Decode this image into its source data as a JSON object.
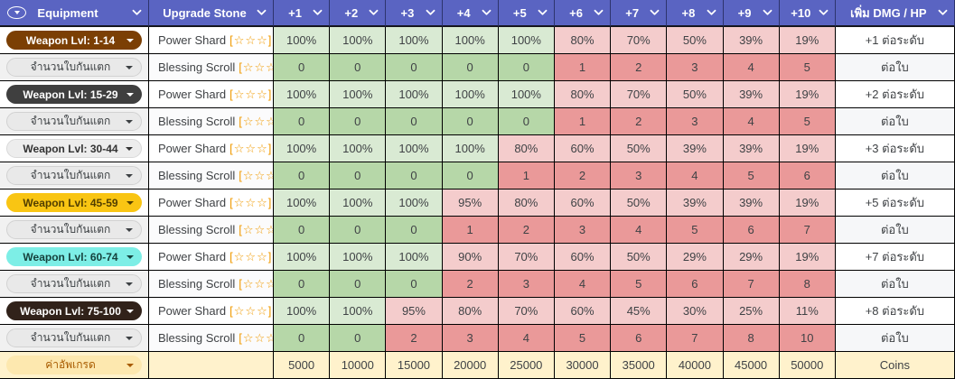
{
  "palette": {
    "header_bg": "#5a64c2",
    "header_fg": "#ffffff",
    "grid_line": "#000000",
    "text": "#3f4245",
    "rate_pass": "#d9ead3",
    "count_zero": "#b6d7a8",
    "rate_fail": "#f4cccc",
    "count_nonzero": "#ea9999",
    "cost_row_bg": "#fff2cc",
    "stars": "#f09a00"
  },
  "header": {
    "columns": [
      "Equipment",
      "Upgrade Stone",
      "+1",
      "+2",
      "+3",
      "+4",
      "+5",
      "+6",
      "+7",
      "+8",
      "+9",
      "+10",
      "เพิ่ม DMG / HP"
    ]
  },
  "groups": [
    {
      "level_label": "Weapon Lvl: 1-14",
      "level_chip": {
        "bg": "#7b3f04",
        "fg": "#ffffff",
        "border": ""
      },
      "power_stone": "Power Shard",
      "power_stars": "[☆☆☆]",
      "power_rates": [
        "100%",
        "100%",
        "100%",
        "100%",
        "100%",
        "80%",
        "70%",
        "50%",
        "39%",
        "19%"
      ],
      "power_bonus": "+1 ต่อระดับ",
      "blessing_label": "จำนวนใบกันแตก",
      "blessing_chip": {
        "bg": "#e9e9e9",
        "fg": "#3c4043",
        "border": "#d2d2d2"
      },
      "blessing_stone": "Blessing Scroll",
      "blessing_stars": "[☆☆☆]",
      "blessing_counts": [
        "0",
        "0",
        "0",
        "0",
        "0",
        "1",
        "2",
        "3",
        "4",
        "5"
      ],
      "blessing_bonus": "ต่อใบ"
    },
    {
      "level_label": "Weapon Lvl: 15-29",
      "level_chip": {
        "bg": "#3f3f3f",
        "fg": "#ffffff",
        "border": ""
      },
      "power_stone": "Power Shard",
      "power_stars": "[☆☆☆]",
      "power_rates": [
        "100%",
        "100%",
        "100%",
        "100%",
        "100%",
        "80%",
        "70%",
        "50%",
        "39%",
        "19%"
      ],
      "power_bonus": "+2 ต่อระดับ",
      "blessing_label": "จำนวนใบกันแตก",
      "blessing_chip": {
        "bg": "#e9e9e9",
        "fg": "#3c4043",
        "border": "#d2d2d2"
      },
      "blessing_stone": "Blessing Scroll",
      "blessing_stars": "[☆☆☆]",
      "blessing_counts": [
        "0",
        "0",
        "0",
        "0",
        "0",
        "1",
        "2",
        "3",
        "4",
        "5"
      ],
      "blessing_bonus": "ต่อใบ"
    },
    {
      "level_label": "Weapon Lvl: 30-44",
      "level_chip": {
        "bg": "#ededed",
        "fg": "#333333",
        "border": "#d9d9d9"
      },
      "power_stone": "Power Shard",
      "power_stars": "[☆☆☆]",
      "power_rates": [
        "100%",
        "100%",
        "100%",
        "100%",
        "80%",
        "60%",
        "50%",
        "39%",
        "39%",
        "19%"
      ],
      "power_bonus": "+3 ต่อระดับ",
      "blessing_label": "จำนวนใบกันแตก",
      "blessing_chip": {
        "bg": "#e9e9e9",
        "fg": "#3c4043",
        "border": "#d2d2d2"
      },
      "blessing_stone": "Blessing Scroll",
      "blessing_stars": "[☆☆☆]",
      "blessing_counts": [
        "0",
        "0",
        "0",
        "0",
        "1",
        "2",
        "3",
        "4",
        "5",
        "6"
      ],
      "blessing_bonus": "ต่อใบ"
    },
    {
      "level_label": "Weapon Lvl: 45-59",
      "level_chip": {
        "bg": "#f9c513",
        "fg": "#523f00",
        "border": ""
      },
      "power_stone": "Power Shard",
      "power_stars": "[☆☆☆]",
      "power_rates": [
        "100%",
        "100%",
        "100%",
        "95%",
        "80%",
        "60%",
        "50%",
        "39%",
        "39%",
        "19%"
      ],
      "power_bonus": "+5 ต่อระดับ",
      "blessing_label": "จำนวนใบกันแตก",
      "blessing_chip": {
        "bg": "#e9e9e9",
        "fg": "#3c4043",
        "border": "#d2d2d2"
      },
      "blessing_stone": "Blessing Scroll",
      "blessing_stars": "[☆☆☆]",
      "blessing_counts": [
        "0",
        "0",
        "0",
        "1",
        "2",
        "3",
        "4",
        "5",
        "6",
        "7"
      ],
      "blessing_bonus": "ต่อใบ"
    },
    {
      "level_label": "Weapon Lvl: 60-74",
      "level_chip": {
        "bg": "#7deee6",
        "fg": "#16413d",
        "border": ""
      },
      "power_stone": "Power Shard",
      "power_stars": "[☆☆☆]",
      "power_rates": [
        "100%",
        "100%",
        "100%",
        "90%",
        "70%",
        "60%",
        "50%",
        "29%",
        "29%",
        "19%"
      ],
      "power_bonus": "+7 ต่อระดับ",
      "blessing_label": "จำนวนใบกันแตก",
      "blessing_chip": {
        "bg": "#e9e9e9",
        "fg": "#3c4043",
        "border": "#d2d2d2"
      },
      "blessing_stone": "Blessing Scroll",
      "blessing_stars": "[☆☆☆]",
      "blessing_counts": [
        "0",
        "0",
        "0",
        "2",
        "3",
        "4",
        "5",
        "6",
        "7",
        "8"
      ],
      "blessing_bonus": "ต่อใบ"
    },
    {
      "level_label": "Weapon Lvl: 75-100",
      "level_chip": {
        "bg": "#31221a",
        "fg": "#ffffff",
        "border": ""
      },
      "power_stone": "Power Shard",
      "power_stars": "[☆☆☆]",
      "power_rates": [
        "100%",
        "100%",
        "95%",
        "80%",
        "70%",
        "60%",
        "45%",
        "30%",
        "25%",
        "11%"
      ],
      "power_bonus": "+8 ต่อระดับ",
      "blessing_label": "จำนวนใบกันแตก",
      "blessing_chip": {
        "bg": "#e9e9e9",
        "fg": "#3c4043",
        "border": "#d2d2d2"
      },
      "blessing_stone": "Blessing Scroll",
      "blessing_stars": "[☆☆☆]",
      "blessing_counts": [
        "0",
        "0",
        "2",
        "3",
        "4",
        "5",
        "6",
        "7",
        "8",
        "10"
      ],
      "blessing_bonus": "ต่อใบ"
    }
  ],
  "cost_row": {
    "label": "ค่าอัพเกรด",
    "chip": {
      "bg": "#fde8af",
      "fg": "#a85b00",
      "border": ""
    },
    "values": [
      "5000",
      "10000",
      "15000",
      "20000",
      "25000",
      "30000",
      "35000",
      "40000",
      "45000",
      "50000"
    ],
    "unit": "Coins"
  }
}
